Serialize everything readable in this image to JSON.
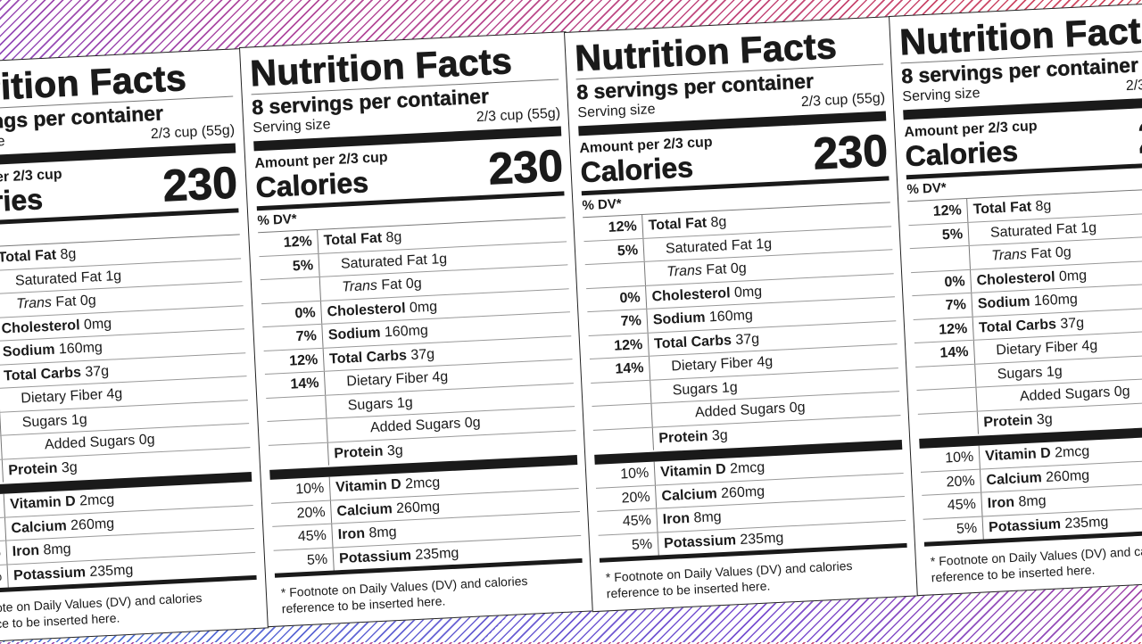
{
  "label": {
    "title": "Nutrition Facts",
    "servings": "8 servings per container",
    "serving_size_label": "Serving size",
    "serving_size_value": "2/3 cup (55g)",
    "amount_per": "Amount per 2/3 cup",
    "calories_label": "Calories",
    "calories_value": "230",
    "dv_header": "% DV*",
    "nutrients": [
      {
        "dv": "12%",
        "name": "Total Fat",
        "amount": "8g",
        "bold": true,
        "indent": 0
      },
      {
        "dv": "5%",
        "name": "Saturated Fat",
        "amount": "1g",
        "bold": false,
        "indent": 1
      },
      {
        "dv": "",
        "name": "Trans",
        "name_suffix": " Fat",
        "amount": "0g",
        "bold": false,
        "indent": 1,
        "italic": true
      },
      {
        "dv": "0%",
        "name": "Cholesterol",
        "amount": "0mg",
        "bold": true,
        "indent": 0
      },
      {
        "dv": "7%",
        "name": "Sodium",
        "amount": "160mg",
        "bold": true,
        "indent": 0
      },
      {
        "dv": "12%",
        "name": "Total Carbs",
        "amount": "37g",
        "bold": true,
        "indent": 0
      },
      {
        "dv": "14%",
        "name": "Dietary Fiber",
        "amount": "4g",
        "bold": false,
        "indent": 1
      },
      {
        "dv": "",
        "name": "Sugars",
        "amount": "1g",
        "bold": false,
        "indent": 1
      },
      {
        "dv": "",
        "name": "Added Sugars",
        "amount": "0g",
        "bold": false,
        "indent": 2
      },
      {
        "dv": "",
        "name": "Protein",
        "amount": "3g",
        "bold": true,
        "indent": 0
      }
    ],
    "vitamins": [
      {
        "dv": "10%",
        "name": "Vitamin D",
        "amount": "2mcg"
      },
      {
        "dv": "20%",
        "name": "Calcium",
        "amount": "260mg"
      },
      {
        "dv": "45%",
        "name": "Iron",
        "amount": "8mg"
      },
      {
        "dv": "5%",
        "name": "Potassium",
        "amount": "235mg"
      }
    ],
    "footnote": "* Footnote on Daily Values (DV) and calories reference to be inserted here."
  },
  "colors": {
    "stripe_top_right": "#d2475a",
    "stripe_middle": "#7a50d0",
    "stripe_bottom_left": "#4a78d8",
    "ink": "#1a1a1a"
  }
}
